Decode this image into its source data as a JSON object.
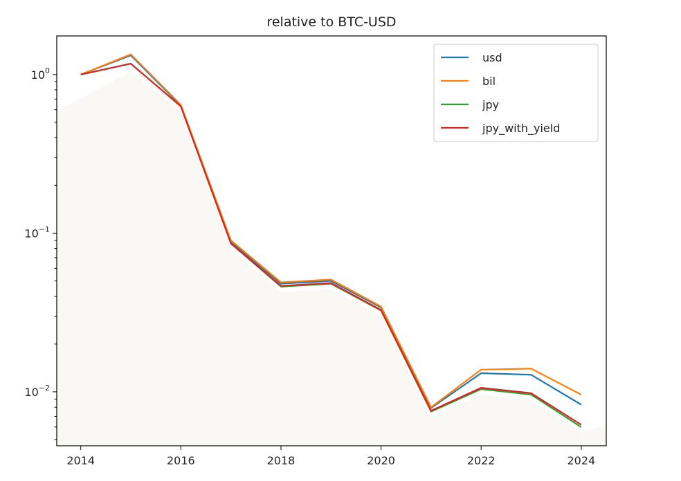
{
  "chart_data": {
    "type": "line",
    "title": "relative to BTC-USD",
    "xlabel": "",
    "ylabel": "",
    "x": [
      2014,
      2015,
      2016,
      2017,
      2018,
      2019,
      2020,
      2021,
      2022,
      2023,
      2024
    ],
    "xlim": [
      2013.52,
      2024.5
    ],
    "ylim": [
      0.00457,
      1.75
    ],
    "yscale": "log",
    "grid": false,
    "legend_position": "top-right",
    "xticks": [
      2014,
      2016,
      2018,
      2020,
      2022,
      2024
    ],
    "xtick_labels": [
      "2014",
      "2016",
      "2018",
      "2020",
      "2022",
      "2024"
    ],
    "yticks": [
      1,
      0.1,
      0.01
    ],
    "ytick_labels": [
      {
        "base": "10",
        "exp": "0"
      },
      {
        "base": "10",
        "exp": "−1"
      },
      {
        "base": "10",
        "exp": "−2"
      }
    ],
    "background_area_color": "#faf8f4",
    "series": [
      {
        "name": "usd",
        "color": "#1f77b4",
        "values": [
          1.0,
          1.32,
          0.637,
          0.088,
          0.048,
          0.05,
          0.034,
          0.0079,
          0.0131,
          0.0128,
          0.0083
        ]
      },
      {
        "name": "bil",
        "color": "#ff7f0e",
        "values": [
          1.0,
          1.34,
          0.645,
          0.09,
          0.049,
          0.051,
          0.0345,
          0.008,
          0.0138,
          0.014,
          0.0096
        ]
      },
      {
        "name": "jpy",
        "color": "#2ca02c",
        "values": [
          1.0,
          1.17,
          0.63,
          0.086,
          0.046,
          0.048,
          0.0325,
          0.0075,
          0.0104,
          0.0096,
          0.006
        ]
      },
      {
        "name": "jpy_with_yield",
        "color": "#d62728",
        "values": [
          1.0,
          1.17,
          0.63,
          0.086,
          0.0465,
          0.0485,
          0.0328,
          0.0076,
          0.0106,
          0.0098,
          0.0062
        ]
      }
    ]
  }
}
